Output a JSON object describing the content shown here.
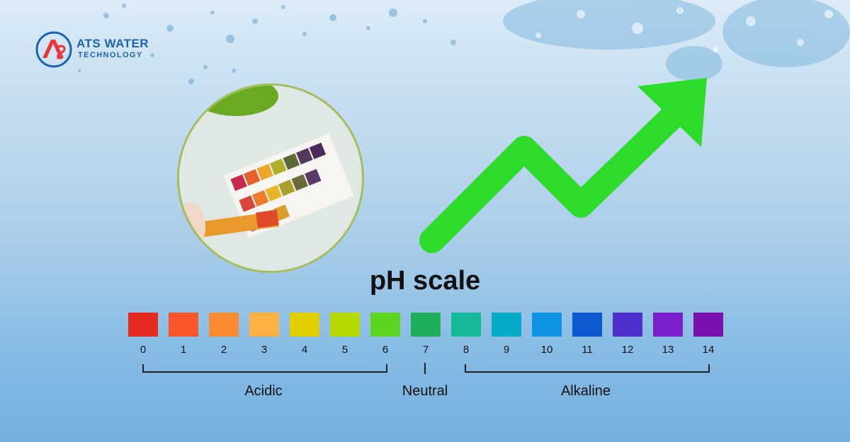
{
  "brand": {
    "name": "ATS WATER",
    "subtitle": "TECHNOLOGY",
    "colors": {
      "primary": "#1a63b2",
      "accent": "#e8373c"
    }
  },
  "photo": {
    "subject": "pH test strip compared against color chart"
  },
  "arrow": {
    "color": "#2ddc2a"
  },
  "title": "pH scale",
  "scale": {
    "values": [
      "0",
      "1",
      "2",
      "3",
      "4",
      "5",
      "6",
      "7",
      "8",
      "9",
      "10",
      "11",
      "12",
      "13",
      "14"
    ],
    "colors": [
      "#e32b22",
      "#f7552a",
      "#fb8b32",
      "#fdb143",
      "#e0cf00",
      "#b7d900",
      "#5ed420",
      "#1fb05c",
      "#16b996",
      "#05acc8",
      "#0e93e0",
      "#0b5ad2",
      "#4e31cc",
      "#7b1fcf",
      "#7a10ae"
    ]
  },
  "groups": {
    "acidic": "Acidic",
    "neutral": "Neutral",
    "alkaline": "Alkaline"
  }
}
